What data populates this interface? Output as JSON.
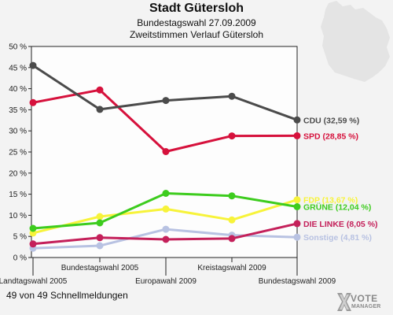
{
  "header": {
    "title": "Stadt Gütersloh",
    "subtitle": "Bundestagswahl 27.09.2009",
    "subtitle2": "Zweitstimmen Verlauf Gütersloh"
  },
  "footer": {
    "status": "49 von 49 Schnellmeldungen",
    "brand_line1": "VOTE",
    "brand_line2": "MANAGER",
    "brand_icon": "vote-manager-x-icon"
  },
  "map_icon": "germany-map-silhouette-icon",
  "chart_data": {
    "type": "line",
    "categories": [
      "Landtagswahl 2005",
      "Bundestagswahl 2005",
      "Europawahl 2009",
      "Kreistagswahl 2009",
      "Bundestagswahl 2009"
    ],
    "ylim": [
      0,
      50
    ],
    "yticks": [
      0,
      5,
      10,
      15,
      20,
      25,
      30,
      35,
      40,
      45,
      50
    ],
    "ytick_labels": [
      "0 %",
      "5 %",
      "10 %",
      "15 %",
      "20 %",
      "25 %",
      "30 %",
      "35 %",
      "40 %",
      "45 %",
      "50 %"
    ],
    "grid": false,
    "series": [
      {
        "name": "Sonstige",
        "values": [
          2.2,
          2.8,
          6.7,
          5.3,
          4.81
        ],
        "color": "#b8c2e2",
        "label": "Sonstige (4,81 %)"
      },
      {
        "name": "FDP",
        "values": [
          5.8,
          9.7,
          11.5,
          8.9,
          13.67
        ],
        "color": "#f7f33a",
        "label": "FDP (13,67 %)"
      },
      {
        "name": "DIE LINKE",
        "values": [
          3.2,
          4.7,
          4.3,
          4.5,
          8.05
        ],
        "color": "#c4205a",
        "label": "DIE LINKE (8,05 %)"
      },
      {
        "name": "GRÜNE",
        "values": [
          6.9,
          8.2,
          15.2,
          14.6,
          12.04
        ],
        "color": "#3dcc1e",
        "label": "GRÜNE (12,04 %)"
      },
      {
        "name": "SPD",
        "values": [
          36.7,
          39.7,
          25.1,
          28.8,
          28.85
        ],
        "color": "#d6113c",
        "label": "SPD (28,85 %)"
      },
      {
        "name": "CDU",
        "values": [
          45.5,
          35.1,
          37.2,
          38.2,
          32.59
        ],
        "color": "#4b4b4b",
        "label": "CDU (32,59 %)"
      }
    ]
  }
}
